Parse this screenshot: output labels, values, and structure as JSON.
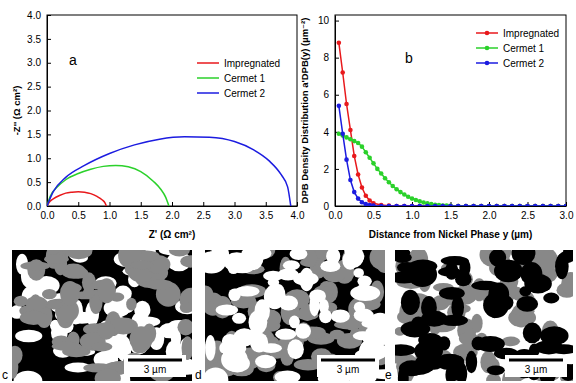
{
  "chart_data": [
    {
      "type": "line",
      "annotation": "a",
      "x_label": "Z' (Ω cm²)",
      "y_label": "-Z'' (Ω cm²)",
      "xlim": [
        0,
        4
      ],
      "ylim": [
        0,
        4
      ],
      "xticks": [
        {
          "value": 0,
          "label": "0.0"
        },
        {
          "value": 0.5,
          "label": "0.5"
        },
        {
          "value": 1,
          "label": "1.0"
        },
        {
          "value": 1.5,
          "label": "1.5"
        },
        {
          "value": 2,
          "label": "2.0"
        },
        {
          "value": 2.5,
          "label": "2.5"
        },
        {
          "value": 3,
          "label": "3.0"
        },
        {
          "value": 3.5,
          "label": "3.5"
        },
        {
          "value": 4,
          "label": "4.0"
        }
      ],
      "yticks": [
        {
          "value": 0,
          "label": "0.0"
        },
        {
          "value": 0.5,
          "label": "0.5"
        },
        {
          "value": 1,
          "label": "1.0"
        },
        {
          "value": 1.5,
          "label": "1.5"
        },
        {
          "value": 2,
          "label": "2.0"
        },
        {
          "value": 2.5,
          "label": "2.5"
        },
        {
          "value": 3,
          "label": "3.0"
        },
        {
          "value": 3.5,
          "label": "3.5"
        },
        {
          "value": 4,
          "label": "4.0"
        }
      ],
      "legend": "upper right",
      "series": [
        {
          "name": "Impregnated",
          "color": "#e8191c",
          "line_style": "solid",
          "x": [
            0,
            0.05,
            0.1,
            0.2,
            0.3,
            0.4,
            0.5,
            0.6,
            0.7,
            0.8,
            0.88,
            0.93,
            0.95
          ],
          "values": [
            0,
            0.1,
            0.15,
            0.22,
            0.27,
            0.29,
            0.3,
            0.29,
            0.26,
            0.2,
            0.13,
            0.06,
            0
          ]
        },
        {
          "name": "Cermet 1",
          "color": "#2bd12b",
          "line_style": "solid",
          "x": [
            0,
            0.05,
            0.15,
            0.3,
            0.5,
            0.7,
            0.9,
            1.1,
            1.3,
            1.5,
            1.7,
            1.82,
            1.9,
            1.95
          ],
          "values": [
            0,
            0.2,
            0.38,
            0.55,
            0.68,
            0.77,
            0.83,
            0.85,
            0.82,
            0.72,
            0.52,
            0.35,
            0.18,
            0
          ]
        },
        {
          "name": "Cermet 2",
          "color": "#1c1ce0",
          "line_style": "solid",
          "x": [
            0,
            0.1,
            0.3,
            0.6,
            1.0,
            1.4,
            1.8,
            2.2,
            2.6,
            3.0,
            3.3,
            3.55,
            3.75,
            3.85,
            3.9
          ],
          "values": [
            0,
            0.3,
            0.6,
            0.85,
            1.1,
            1.28,
            1.4,
            1.45,
            1.44,
            1.35,
            1.18,
            0.95,
            0.65,
            0.4,
            0
          ]
        }
      ]
    },
    {
      "type": "line",
      "annotation": "b",
      "x_label": "Distance from Nickel Phase y (µm)",
      "y_label": "DPB Density Distribution a'DPB(y) (µm⁻²)",
      "xlim": [
        0,
        3
      ],
      "ylim": [
        0,
        10.3
      ],
      "xticks": [
        {
          "value": 0,
          "label": "0.0"
        },
        {
          "value": 0.5,
          "label": "0.5"
        },
        {
          "value": 1,
          "label": "1.0"
        },
        {
          "value": 1.5,
          "label": "1.5"
        },
        {
          "value": 2,
          "label": "2.0"
        },
        {
          "value": 2.5,
          "label": "2.5"
        },
        {
          "value": 3,
          "label": "3.0"
        }
      ],
      "yticks": [
        0,
        2,
        4,
        6,
        8,
        10
      ],
      "legend": "upper right",
      "series": [
        {
          "name": "Impregnated",
          "color": "#e8191c",
          "marker": "circle",
          "line_style": "solid",
          "x": [
            0.05,
            0.1,
            0.15,
            0.2,
            0.25,
            0.3,
            0.35,
            0.4,
            0.45,
            0.5,
            0.6,
            0.7,
            0.8,
            0.9,
            1.0,
            1.1,
            1.2,
            1.3,
            1.4,
            1.5,
            1.6,
            1.7,
            1.8,
            1.9,
            2.0,
            2.1,
            2.2,
            2.3,
            2.4,
            2.5,
            2.6,
            2.7,
            2.8,
            2.9,
            3.0
          ],
          "values": [
            8.8,
            7.2,
            5.5,
            4.1,
            2.7,
            1.7,
            1.0,
            0.55,
            0.3,
            0.15,
            0.05,
            0.02,
            0,
            0,
            0,
            0,
            0,
            0,
            0,
            0,
            0,
            0,
            0,
            0,
            0,
            0,
            0,
            0,
            0,
            0,
            0,
            0,
            0,
            0,
            0
          ]
        },
        {
          "name": "Cermet 1",
          "color": "#2bd12b",
          "marker": "circle",
          "line_style": "solid",
          "x": [
            0.05,
            0.1,
            0.15,
            0.2,
            0.25,
            0.3,
            0.35,
            0.4,
            0.45,
            0.5,
            0.55,
            0.6,
            0.65,
            0.7,
            0.75,
            0.8,
            0.85,
            0.9,
            0.95,
            1.0,
            1.05,
            1.1,
            1.15,
            1.2,
            1.25,
            1.3,
            1.35,
            1.4,
            1.45,
            1.5,
            1.6,
            1.7,
            1.8,
            1.9,
            2.0,
            2.1,
            2.2,
            2.3,
            2.4,
            2.5,
            2.6,
            2.7,
            2.8,
            2.9,
            3.0
          ],
          "values": [
            3.9,
            3.8,
            3.7,
            3.6,
            3.5,
            3.4,
            3.2,
            2.9,
            2.6,
            2.3,
            2.0,
            1.75,
            1.5,
            1.28,
            1.08,
            0.9,
            0.75,
            0.62,
            0.5,
            0.4,
            0.32,
            0.25,
            0.19,
            0.14,
            0.1,
            0.07,
            0.05,
            0.03,
            0.02,
            0.01,
            0,
            0,
            0,
            0,
            0,
            0,
            0,
            0,
            0,
            0,
            0,
            0,
            0,
            0,
            0
          ]
        },
        {
          "name": "Cermet 2",
          "color": "#1c1ce0",
          "marker": "circle",
          "line_style": "solid",
          "x": [
            0.05,
            0.1,
            0.15,
            0.2,
            0.25,
            0.3,
            0.35,
            0.4,
            0.45,
            0.5,
            0.6,
            0.7,
            0.8,
            0.9,
            1.0,
            1.1,
            1.2,
            1.3,
            1.4,
            1.5,
            1.6,
            1.7,
            1.8,
            1.9,
            2.0,
            2.1,
            2.2,
            2.3,
            2.4,
            2.5,
            2.6,
            2.7,
            2.8,
            2.9,
            3.0
          ],
          "values": [
            5.4,
            3.9,
            2.5,
            1.4,
            0.75,
            0.4,
            0.2,
            0.1,
            0.05,
            0.02,
            0,
            0,
            0,
            0,
            0,
            0,
            0,
            0,
            0,
            0,
            0,
            0,
            0,
            0,
            0,
            0,
            0,
            0,
            0,
            0,
            0,
            0,
            0,
            0,
            0
          ]
        }
      ]
    }
  ],
  "images": [
    {
      "label": "c",
      "scale_bar": "3 µm"
    },
    {
      "label": "d",
      "scale_bar": "3 µm"
    },
    {
      "label": "e",
      "scale_bar": "3 µm"
    }
  ]
}
